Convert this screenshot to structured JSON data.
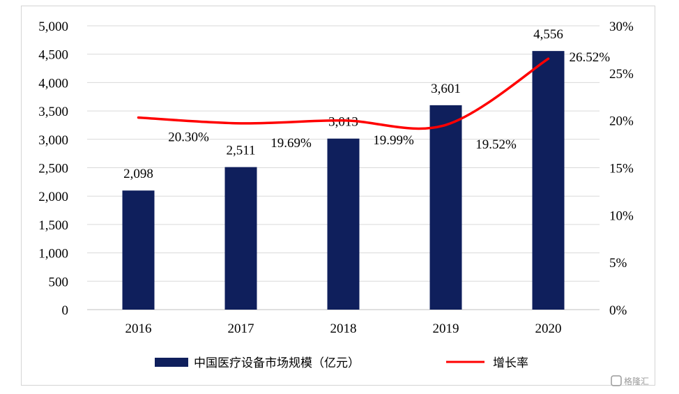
{
  "chart_data": {
    "type": "bar",
    "categories": [
      "2016",
      "2017",
      "2018",
      "2019",
      "2020"
    ],
    "series": [
      {
        "name": "中国医疗设备市场规模（亿元）",
        "type": "bar",
        "axis": "left",
        "values": [
          2098,
          2511,
          3013,
          3601,
          4556
        ],
        "labels": [
          "2,098",
          "2,511",
          "3,013",
          "3,601",
          "4,556"
        ]
      },
      {
        "name": "增长率",
        "type": "line",
        "axis": "right",
        "values": [
          20.3,
          19.69,
          19.99,
          19.52,
          26.52
        ],
        "labels": [
          "20.30%",
          "19.69%",
          "19.99%",
          "19.52%",
          "26.52%"
        ]
      }
    ],
    "ylim": [
      0,
      5000
    ],
    "y2lim": [
      0,
      30
    ],
    "yticks": [
      "0",
      "500",
      "1,000",
      "1,500",
      "2,000",
      "2,500",
      "3,000",
      "3,500",
      "4,000",
      "4,500",
      "5,000"
    ],
    "y2ticks": [
      "0%",
      "5%",
      "10%",
      "15%",
      "20%",
      "25%",
      "30%"
    ],
    "grid": true,
    "legend_position": "bottom",
    "colors": {
      "bar": "#0f1f5c",
      "line": "#ff0000",
      "grid": "#d9d9d9"
    }
  },
  "watermark": "格隆汇"
}
